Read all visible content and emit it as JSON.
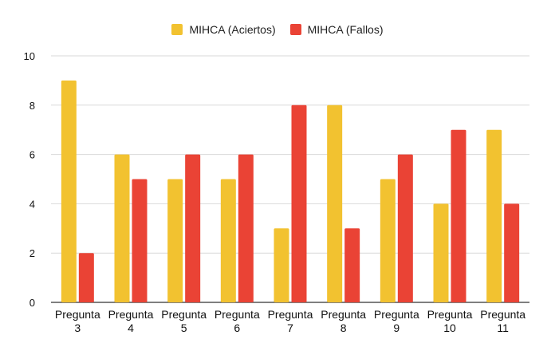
{
  "chart_data": {
    "type": "bar",
    "categories": [
      [
        "Pregunta",
        "3"
      ],
      [
        "Pregunta",
        "4"
      ],
      [
        "Pregunta",
        "5"
      ],
      [
        "Pregunta",
        "6"
      ],
      [
        "Pregunta",
        "7"
      ],
      [
        "Pregunta",
        "8"
      ],
      [
        "Pregunta",
        "9"
      ],
      [
        "Pregunta",
        "10"
      ],
      [
        "Pregunta",
        "11"
      ]
    ],
    "series": [
      {
        "name": "MIHCA (Aciertos)",
        "color": "#F2C230",
        "values": [
          9,
          6,
          5,
          5,
          3,
          8,
          5,
          4,
          7
        ]
      },
      {
        "name": "MIHCA (Fallos)",
        "color": "#EA4335",
        "values": [
          2,
          5,
          6,
          6,
          8,
          3,
          6,
          7,
          4
        ]
      }
    ],
    "ylim": [
      0,
      10
    ],
    "yticks": [
      "0",
      "2",
      "4",
      "6",
      "8",
      "10"
    ],
    "legend_position": "top-center",
    "grid": true,
    "gridline_color": "#D9D9D9",
    "title": "",
    "xlabel": "",
    "ylabel": ""
  }
}
